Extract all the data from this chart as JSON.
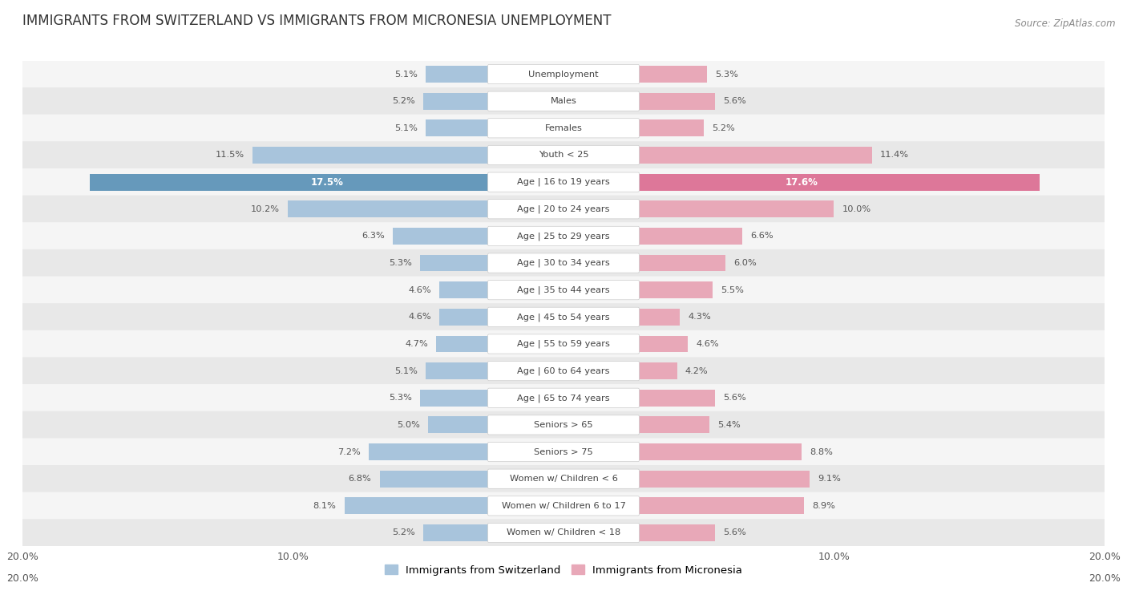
{
  "title": "IMMIGRANTS FROM SWITZERLAND VS IMMIGRANTS FROM MICRONESIA UNEMPLOYMENT",
  "source": "Source: ZipAtlas.com",
  "categories": [
    "Unemployment",
    "Males",
    "Females",
    "Youth < 25",
    "Age | 16 to 19 years",
    "Age | 20 to 24 years",
    "Age | 25 to 29 years",
    "Age | 30 to 34 years",
    "Age | 35 to 44 years",
    "Age | 45 to 54 years",
    "Age | 55 to 59 years",
    "Age | 60 to 64 years",
    "Age | 65 to 74 years",
    "Seniors > 65",
    "Seniors > 75",
    "Women w/ Children < 6",
    "Women w/ Children 6 to 17",
    "Women w/ Children < 18"
  ],
  "switzerland_values": [
    5.1,
    5.2,
    5.1,
    11.5,
    17.5,
    10.2,
    6.3,
    5.3,
    4.6,
    4.6,
    4.7,
    5.1,
    5.3,
    5.0,
    7.2,
    6.8,
    8.1,
    5.2
  ],
  "micronesia_values": [
    5.3,
    5.6,
    5.2,
    11.4,
    17.6,
    10.0,
    6.6,
    6.0,
    5.5,
    4.3,
    4.6,
    4.2,
    5.6,
    5.4,
    8.8,
    9.1,
    8.9,
    5.6
  ],
  "switzerland_color": "#a8c4dc",
  "switzerland_color_highlight": "#6699bb",
  "micronesia_color": "#e8a8b8",
  "micronesia_color_highlight": "#dd7799",
  "background_color": "#e8e8e8",
  "row_even_color": "#f5f5f5",
  "row_odd_color": "#e8e8e8",
  "max_value": 20.0,
  "legend_switzerland": "Immigrants from Switzerland",
  "legend_micronesia": "Immigrants from Micronesia"
}
